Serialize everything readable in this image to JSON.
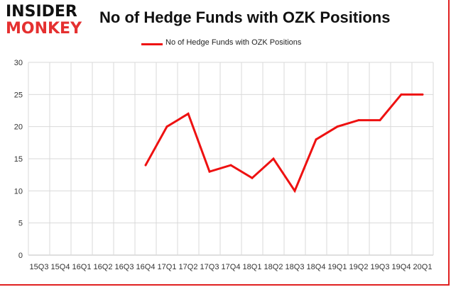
{
  "logo": {
    "line1": "INSIDER",
    "line2": "MONKEY"
  },
  "colors": {
    "series": "#ee1111",
    "grid": "#d9d9d9",
    "axis": "#bfbfbf",
    "frame": "#e02020"
  },
  "chart_data": {
    "type": "line",
    "title": "No of Hedge Funds with OZK Positions",
    "xlabel": "",
    "ylabel": "",
    "legend_position": "top-center",
    "grid": true,
    "ylim": [
      0,
      30
    ],
    "yticks": [
      0,
      5,
      10,
      15,
      20,
      25,
      30
    ],
    "categories": [
      "15Q3",
      "15Q4",
      "16Q1",
      "16Q2",
      "16Q3",
      "16Q4",
      "17Q1",
      "17Q2",
      "17Q3",
      "17Q4",
      "18Q1",
      "18Q2",
      "18Q3",
      "18Q4",
      "19Q1",
      "19Q2",
      "19Q3",
      "19Q4",
      "20Q1"
    ],
    "series": [
      {
        "name": "No of Hedge Funds with OZK Positions",
        "values": [
          null,
          null,
          null,
          null,
          null,
          14,
          20,
          22,
          13,
          14,
          12,
          15,
          10,
          18,
          20,
          21,
          21,
          25,
          25
        ]
      }
    ]
  }
}
